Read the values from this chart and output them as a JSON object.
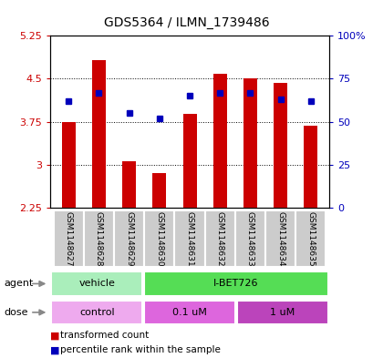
{
  "title": "GDS5364 / ILMN_1739486",
  "samples": [
    "GSM1148627",
    "GSM1148628",
    "GSM1148629",
    "GSM1148630",
    "GSM1148631",
    "GSM1148632",
    "GSM1148633",
    "GSM1148634",
    "GSM1148635"
  ],
  "bar_values": [
    3.75,
    4.82,
    3.06,
    2.85,
    3.88,
    4.58,
    4.5,
    4.42,
    3.68
  ],
  "bar_bottom": 2.25,
  "blue_percentiles": [
    62,
    67,
    55,
    52,
    65,
    67,
    67,
    63,
    62
  ],
  "ylim_left": [
    2.25,
    5.25
  ],
  "yticks_left": [
    2.25,
    3.0,
    3.75,
    4.5,
    5.25
  ],
  "ytick_labels_left": [
    "2.25",
    "3",
    "3.75",
    "4.5",
    "5.25"
  ],
  "ylim_right": [
    0,
    100
  ],
  "yticks_right": [
    0,
    25,
    50,
    75,
    100
  ],
  "ytick_labels_right": [
    "0",
    "25",
    "50",
    "75",
    "100%"
  ],
  "bar_color": "#cc0000",
  "blue_color": "#0000bb",
  "agent_groups": [
    {
      "label": "vehicle",
      "start": 0,
      "end": 3,
      "color": "#aaeebb"
    },
    {
      "label": "I-BET726",
      "start": 3,
      "end": 9,
      "color": "#55dd55"
    }
  ],
  "dose_groups": [
    {
      "label": "control",
      "start": 0,
      "end": 3,
      "color": "#eeaaee"
    },
    {
      "label": "0.1 uM",
      "start": 3,
      "end": 6,
      "color": "#dd66dd"
    },
    {
      "label": "1 uM",
      "start": 6,
      "end": 9,
      "color": "#bb44bb"
    }
  ],
  "legend_red_label": "transformed count",
  "legend_blue_label": "percentile rank within the sample",
  "left_label_color": "#cc0000",
  "right_label_color": "#0000bb",
  "plot_bg": "#ffffff",
  "sample_bg": "#cccccc"
}
